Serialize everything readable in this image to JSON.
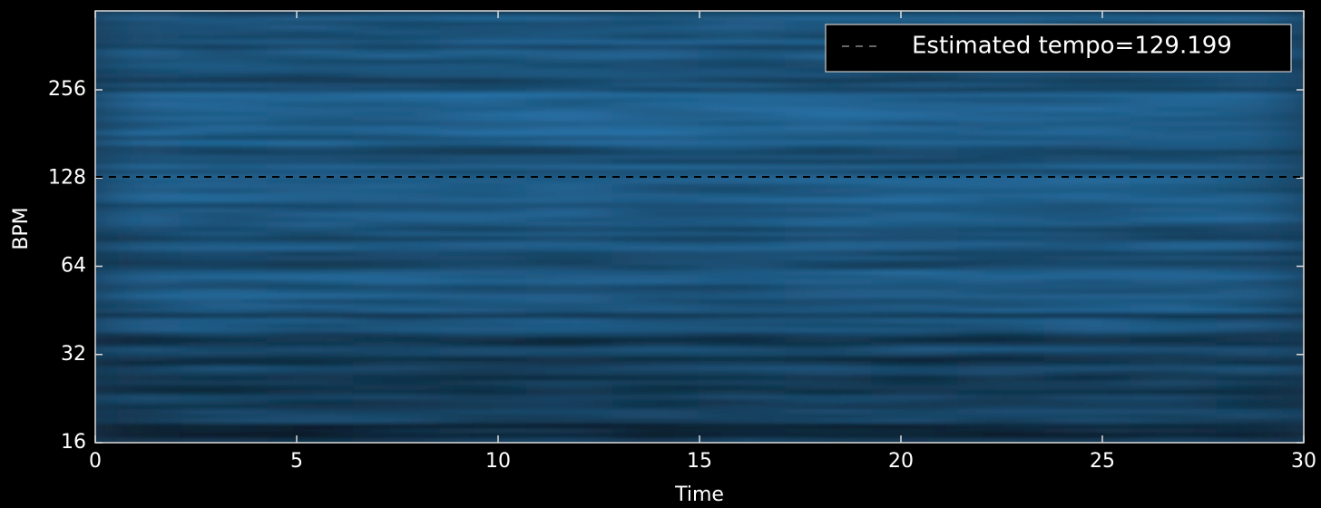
{
  "chart_data": {
    "type": "line",
    "x": [
      0,
      30
    ],
    "series": [
      {
        "name": "Estimated tempo=129.199",
        "color": "#000000",
        "values": [
          129.199,
          129.199
        ]
      }
    ],
    "xlabel": "Time",
    "ylabel": "BPM",
    "xlim": [
      0,
      30
    ],
    "xticks": [
      0,
      5,
      10,
      15,
      20,
      25,
      30
    ],
    "ylim": [
      16,
      476
    ],
    "yticks": [
      16,
      32,
      64,
      128,
      256
    ],
    "yscale": "log2",
    "legend": "upper right"
  }
}
